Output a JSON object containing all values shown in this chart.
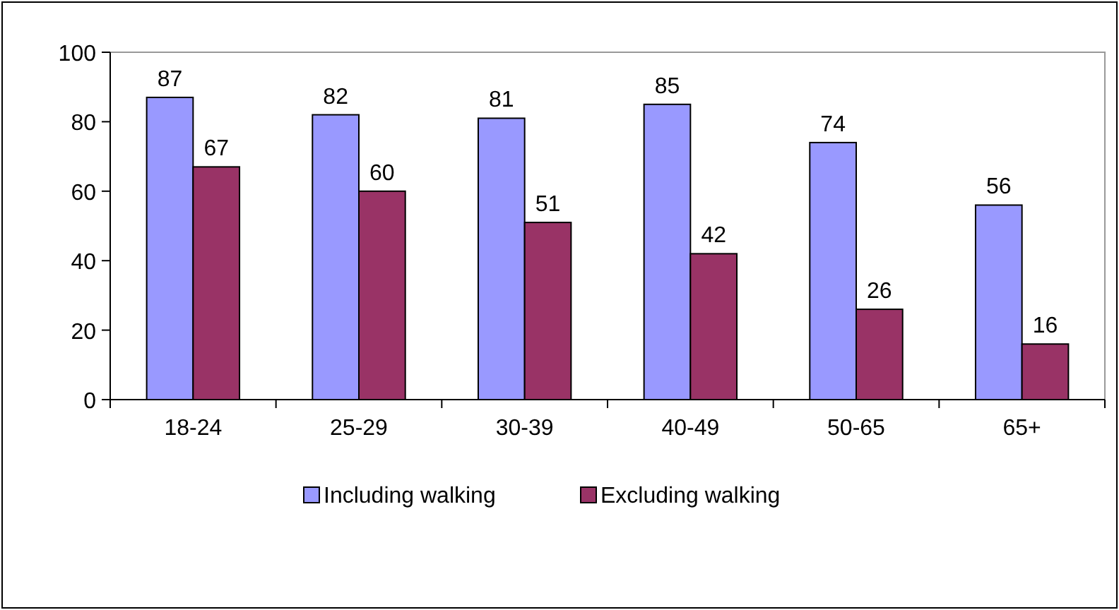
{
  "chart_data": {
    "type": "bar",
    "categories": [
      "18-24",
      "25-29",
      "30-39",
      "40-49",
      "50-65",
      "65+"
    ],
    "series": [
      {
        "name": "Including walking",
        "color": "#9999ff",
        "values": [
          87,
          82,
          81,
          85,
          74,
          56
        ]
      },
      {
        "name": "Excluding walking",
        "color": "#993366",
        "values": [
          67,
          60,
          51,
          42,
          26,
          16
        ]
      }
    ],
    "ylim": [
      0,
      100
    ],
    "yticks": [
      0,
      20,
      40,
      60,
      80,
      100
    ],
    "grid": false,
    "legend": "bottom",
    "data_labels": true
  }
}
